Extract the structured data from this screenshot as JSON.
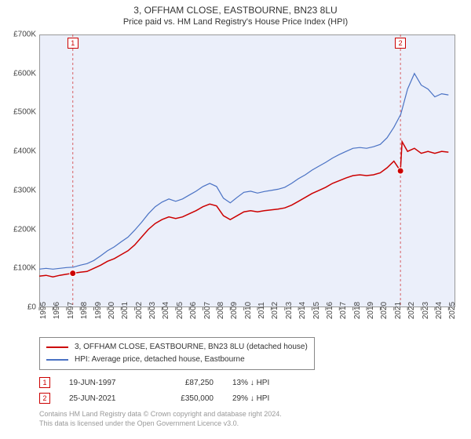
{
  "title_line1": "3, OFFHAM CLOSE, EASTBOURNE, BN23 8LU",
  "title_line2": "Price paid vs. HM Land Registry's House Price Index (HPI)",
  "chart": {
    "type": "line",
    "background_color": "#ebeffa",
    "border_color": "#999999",
    "x_years": [
      1995,
      1996,
      1997,
      1998,
      1999,
      2000,
      2001,
      2002,
      2003,
      2004,
      2005,
      2006,
      2007,
      2008,
      2009,
      2010,
      2011,
      2012,
      2013,
      2014,
      2015,
      2016,
      2017,
      2018,
      2019,
      2020,
      2021,
      2022,
      2023,
      2024,
      2025
    ],
    "xlim": [
      1995,
      2025.5
    ],
    "y_ticks": [
      0,
      100000,
      200000,
      300000,
      400000,
      500000,
      600000,
      700000
    ],
    "y_tick_labels": [
      "£0",
      "£100K",
      "£200K",
      "£300K",
      "£400K",
      "£500K",
      "£600K",
      "£700K"
    ],
    "ylim": [
      0,
      700000
    ],
    "series": [
      {
        "name": "property",
        "label": "3, OFFHAM CLOSE, EASTBOURNE, BN23 8LU (detached house)",
        "color": "#cc0000",
        "line_width": 1.5,
        "data": [
          [
            1995,
            80000
          ],
          [
            1995.5,
            82000
          ],
          [
            1996,
            78000
          ],
          [
            1996.5,
            82000
          ],
          [
            1997,
            85000
          ],
          [
            1997.46,
            87250
          ],
          [
            1998,
            90000
          ],
          [
            1998.5,
            92000
          ],
          [
            1999,
            100000
          ],
          [
            1999.5,
            108000
          ],
          [
            2000,
            118000
          ],
          [
            2000.5,
            125000
          ],
          [
            2001,
            135000
          ],
          [
            2001.5,
            145000
          ],
          [
            2002,
            160000
          ],
          [
            2002.5,
            180000
          ],
          [
            2003,
            200000
          ],
          [
            2003.5,
            215000
          ],
          [
            2004,
            225000
          ],
          [
            2004.5,
            232000
          ],
          [
            2005,
            228000
          ],
          [
            2005.5,
            232000
          ],
          [
            2006,
            240000
          ],
          [
            2006.5,
            248000
          ],
          [
            2007,
            258000
          ],
          [
            2007.5,
            265000
          ],
          [
            2008,
            260000
          ],
          [
            2008.5,
            235000
          ],
          [
            2009,
            225000
          ],
          [
            2009.5,
            235000
          ],
          [
            2010,
            245000
          ],
          [
            2010.5,
            248000
          ],
          [
            2011,
            245000
          ],
          [
            2011.5,
            248000
          ],
          [
            2012,
            250000
          ],
          [
            2012.5,
            252000
          ],
          [
            2013,
            255000
          ],
          [
            2013.5,
            262000
          ],
          [
            2014,
            272000
          ],
          [
            2014.5,
            282000
          ],
          [
            2015,
            292000
          ],
          [
            2015.5,
            300000
          ],
          [
            2016,
            308000
          ],
          [
            2016.5,
            318000
          ],
          [
            2017,
            325000
          ],
          [
            2017.5,
            332000
          ],
          [
            2018,
            338000
          ],
          [
            2018.5,
            340000
          ],
          [
            2019,
            338000
          ],
          [
            2019.5,
            340000
          ],
          [
            2020,
            345000
          ],
          [
            2020.5,
            358000
          ],
          [
            2021,
            375000
          ],
          [
            2021.48,
            350000
          ],
          [
            2021.6,
            425000
          ],
          [
            2022,
            400000
          ],
          [
            2022.5,
            408000
          ],
          [
            2023,
            395000
          ],
          [
            2023.5,
            400000
          ],
          [
            2024,
            395000
          ],
          [
            2024.5,
            400000
          ],
          [
            2025,
            398000
          ]
        ]
      },
      {
        "name": "hpi",
        "label": "HPI: Average price, detached house, Eastbourne",
        "color": "#4a72c4",
        "line_width": 1.2,
        "data": [
          [
            1995,
            98000
          ],
          [
            1995.5,
            100000
          ],
          [
            1996,
            98000
          ],
          [
            1996.5,
            100000
          ],
          [
            1997,
            102000
          ],
          [
            1997.5,
            103000
          ],
          [
            1998,
            108000
          ],
          [
            1998.5,
            112000
          ],
          [
            1999,
            120000
          ],
          [
            1999.5,
            132000
          ],
          [
            2000,
            145000
          ],
          [
            2000.5,
            155000
          ],
          [
            2001,
            168000
          ],
          [
            2001.5,
            180000
          ],
          [
            2002,
            198000
          ],
          [
            2002.5,
            218000
          ],
          [
            2003,
            240000
          ],
          [
            2003.5,
            258000
          ],
          [
            2004,
            270000
          ],
          [
            2004.5,
            278000
          ],
          [
            2005,
            272000
          ],
          [
            2005.5,
            278000
          ],
          [
            2006,
            288000
          ],
          [
            2006.5,
            298000
          ],
          [
            2007,
            310000
          ],
          [
            2007.5,
            318000
          ],
          [
            2008,
            310000
          ],
          [
            2008.5,
            280000
          ],
          [
            2009,
            268000
          ],
          [
            2009.5,
            282000
          ],
          [
            2010,
            295000
          ],
          [
            2010.5,
            298000
          ],
          [
            2011,
            293000
          ],
          [
            2011.5,
            297000
          ],
          [
            2012,
            300000
          ],
          [
            2012.5,
            303000
          ],
          [
            2013,
            308000
          ],
          [
            2013.5,
            318000
          ],
          [
            2014,
            330000
          ],
          [
            2014.5,
            340000
          ],
          [
            2015,
            352000
          ],
          [
            2015.5,
            362000
          ],
          [
            2016,
            372000
          ],
          [
            2016.5,
            383000
          ],
          [
            2017,
            392000
          ],
          [
            2017.5,
            400000
          ],
          [
            2018,
            408000
          ],
          [
            2018.5,
            410000
          ],
          [
            2019,
            408000
          ],
          [
            2019.5,
            412000
          ],
          [
            2020,
            418000
          ],
          [
            2020.5,
            435000
          ],
          [
            2021,
            462000
          ],
          [
            2021.5,
            495000
          ],
          [
            2022,
            560000
          ],
          [
            2022.5,
            600000
          ],
          [
            2023,
            570000
          ],
          [
            2023.5,
            560000
          ],
          [
            2024,
            540000
          ],
          [
            2024.5,
            548000
          ],
          [
            2025,
            545000
          ]
        ]
      }
    ],
    "markers": [
      {
        "n": "1",
        "x": 1997.46,
        "y": 87250,
        "color": "#cc0000"
      },
      {
        "n": "2",
        "x": 2021.48,
        "y": 350000,
        "color": "#cc0000"
      }
    ]
  },
  "legend": {
    "items": [
      {
        "color": "#cc0000",
        "label": "3, OFFHAM CLOSE, EASTBOURNE, BN23 8LU (detached house)"
      },
      {
        "color": "#4a72c4",
        "label": "HPI: Average price, detached house, Eastbourne"
      }
    ]
  },
  "marker_rows": [
    {
      "n": "1",
      "color": "#cc0000",
      "date": "19-JUN-1997",
      "price": "£87,250",
      "diff": "13% ↓ HPI"
    },
    {
      "n": "2",
      "color": "#cc0000",
      "date": "25-JUN-2021",
      "price": "£350,000",
      "diff": "29% ↓ HPI"
    }
  ],
  "footer_line1": "Contains HM Land Registry data © Crown copyright and database right 2024.",
  "footer_line2": "This data is licensed under the Open Government Licence v3.0."
}
